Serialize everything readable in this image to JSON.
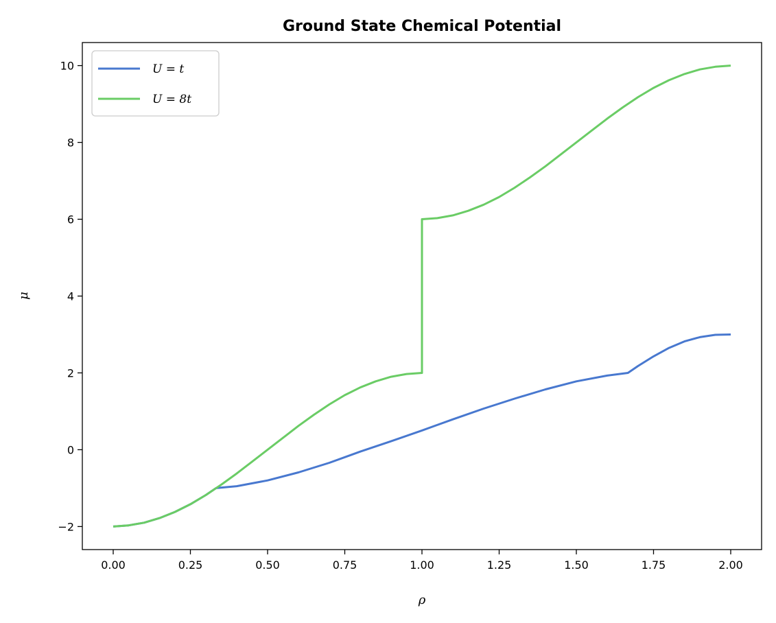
{
  "chart_data": {
    "type": "line",
    "title": "Ground State Chemical Potential",
    "xlabel": "ρ",
    "ylabel": "μ",
    "xlim": [
      -0.1,
      2.1
    ],
    "ylim": [
      -2.6,
      10.6
    ],
    "xticks": [
      0.0,
      0.25,
      0.5,
      0.75,
      1.0,
      1.25,
      1.5,
      1.75,
      2.0
    ],
    "xtick_labels": [
      "0.00",
      "0.25",
      "0.50",
      "0.75",
      "1.00",
      "1.25",
      "1.50",
      "1.75",
      "2.00"
    ],
    "yticks": [
      -2,
      0,
      2,
      4,
      6,
      8,
      10
    ],
    "ytick_labels": [
      "−2",
      "0",
      "2",
      "4",
      "6",
      "8",
      "10"
    ],
    "grid": false,
    "legend_position": "top-left",
    "series": [
      {
        "name": "U = t",
        "color": "#4878CF",
        "x": [
          0.0,
          0.05,
          0.1,
          0.15,
          0.2,
          0.25,
          0.3,
          0.333,
          0.4,
          0.5,
          0.6,
          0.7,
          0.8,
          0.9,
          1.0,
          1.1,
          1.2,
          1.3,
          1.4,
          1.5,
          1.6,
          1.667,
          1.7,
          1.75,
          1.8,
          1.85,
          1.9,
          1.95,
          2.0
        ],
        "y": [
          -2.0,
          -1.97,
          -1.9,
          -1.78,
          -1.62,
          -1.42,
          -1.18,
          -1.0,
          -0.95,
          -0.8,
          -0.59,
          -0.34,
          -0.05,
          0.22,
          0.5,
          0.79,
          1.07,
          1.33,
          1.57,
          1.78,
          1.93,
          2.0,
          2.18,
          2.43,
          2.65,
          2.82,
          2.93,
          2.99,
          3.0
        ]
      },
      {
        "name": "U = 8t",
        "color": "#6ACC65",
        "x": [
          0.0,
          0.05,
          0.1,
          0.15,
          0.2,
          0.25,
          0.3,
          0.35,
          0.4,
          0.45,
          0.5,
          0.55,
          0.6,
          0.65,
          0.7,
          0.75,
          0.8,
          0.85,
          0.9,
          0.95,
          1.0,
          1.0,
          1.05,
          1.1,
          1.15,
          1.2,
          1.25,
          1.3,
          1.35,
          1.4,
          1.45,
          1.5,
          1.55,
          1.6,
          1.65,
          1.7,
          1.75,
          1.8,
          1.85,
          1.9,
          1.95,
          2.0
        ],
        "y": [
          -2.0,
          -1.97,
          -1.9,
          -1.78,
          -1.62,
          -1.42,
          -1.18,
          -0.91,
          -0.62,
          -0.31,
          0.0,
          0.31,
          0.62,
          0.91,
          1.18,
          1.42,
          1.62,
          1.78,
          1.9,
          1.97,
          2.0,
          6.0,
          6.03,
          6.1,
          6.22,
          6.38,
          6.58,
          6.82,
          7.09,
          7.38,
          7.69,
          8.0,
          8.31,
          8.62,
          8.91,
          9.18,
          9.42,
          9.62,
          9.78,
          9.9,
          9.97,
          10.0
        ]
      }
    ]
  }
}
